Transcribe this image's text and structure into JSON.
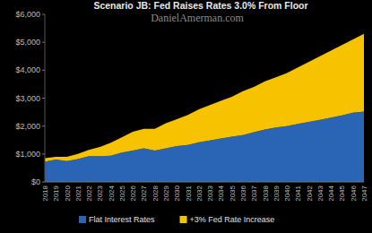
{
  "chart_data": {
    "type": "area",
    "stacked": true,
    "title": "Scenario JB:  Fed Raises Rates 3.0% From Floor",
    "annotations": [
      "DanielAmerman.com"
    ],
    "categories": [
      "2018",
      "2019",
      "2020",
      "2021",
      "2022",
      "2023",
      "2024",
      "2025",
      "2026",
      "2027",
      "2028",
      "2029",
      "2030",
      "2031",
      "2032",
      "2033",
      "2034",
      "2035",
      "2036",
      "2037",
      "2038",
      "2039",
      "2040",
      "2041",
      "2042",
      "2043",
      "2044",
      "2045",
      "2046",
      "2047"
    ],
    "series": [
      {
        "name": "Flat Interest Rates",
        "color": "#2a64b4",
        "values": [
          720,
          800,
          750,
          820,
          920,
          920,
          940,
          1050,
          1120,
          1200,
          1120,
          1200,
          1280,
          1320,
          1420,
          1480,
          1560,
          1620,
          1680,
          1780,
          1880,
          1950,
          2000,
          2080,
          2150,
          2220,
          2300,
          2380,
          2480,
          2520
        ]
      },
      {
        "name": "+3% Fed Rate Increase",
        "color": "#f7c300",
        "values": [
          130,
          100,
          150,
          180,
          230,
          330,
          460,
          550,
          680,
          700,
          780,
          900,
          970,
          1080,
          1180,
          1270,
          1340,
          1430,
          1570,
          1620,
          1720,
          1800,
          1900,
          2020,
          2150,
          2280,
          2400,
          2520,
          2620,
          2780
        ]
      }
    ],
    "ylim": [
      0,
      6000
    ],
    "yticks": [
      {
        "value": 0,
        "label": "$0"
      },
      {
        "value": 1000,
        "label": "$1,000"
      },
      {
        "value": 2000,
        "label": "$2,000"
      },
      {
        "value": 3000,
        "label": "$3,000"
      },
      {
        "value": 4000,
        "label": "$4,000"
      },
      {
        "value": 5000,
        "label": "$5,000"
      },
      {
        "value": 6000,
        "label": "$6,000"
      }
    ],
    "grid": false,
    "legend": "bottom"
  }
}
